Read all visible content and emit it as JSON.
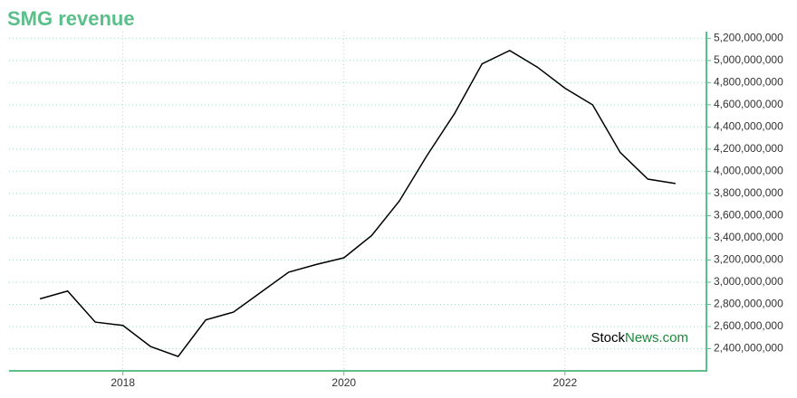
{
  "chart_data": {
    "type": "line",
    "title": "SMG revenue",
    "x": [
      2017.25,
      2017.5,
      2017.75,
      2018.0,
      2018.25,
      2018.5,
      2018.75,
      2019.0,
      2019.25,
      2019.5,
      2019.75,
      2020.0,
      2020.25,
      2020.5,
      2020.75,
      2021.0,
      2021.25,
      2021.5,
      2021.75,
      2022.0,
      2022.25,
      2022.5,
      2022.75,
      2023.0
    ],
    "series": [
      {
        "name": "SMG revenue",
        "color": "#000000",
        "values": [
          2850000000,
          2920000000,
          2640000000,
          2610000000,
          2420000000,
          2330000000,
          2660000000,
          2730000000,
          2910000000,
          3090000000,
          3160000000,
          3220000000,
          3420000000,
          3730000000,
          4140000000,
          4520000000,
          4970000000,
          5090000000,
          4940000000,
          4750000000,
          4600000000,
          4170000000,
          3930000000,
          3890000000
        ]
      }
    ],
    "xlim": [
      2016.97,
      2023.28
    ],
    "xticks": [
      2018,
      2020,
      2022
    ],
    "ylim": [
      2200000000,
      5260000000
    ],
    "yticks": [
      {
        "value": 2400000000,
        "label": "2,400,000,000"
      },
      {
        "value": 2600000000,
        "label": "2,600,000,000"
      },
      {
        "value": 2800000000,
        "label": "2,800,000,000"
      },
      {
        "value": 3000000000,
        "label": "3,000,000,000"
      },
      {
        "value": 3200000000,
        "label": "3,200,000,000"
      },
      {
        "value": 3400000000,
        "label": "3,400,000,000"
      },
      {
        "value": 3600000000,
        "label": "3,600,000,000"
      },
      {
        "value": 3800000000,
        "label": "3,800,000,000"
      },
      {
        "value": 4000000000,
        "label": "4,000,000,000"
      },
      {
        "value": 4200000000,
        "label": "4,200,000,000"
      },
      {
        "value": 4400000000,
        "label": "4,400,000,000"
      },
      {
        "value": 4600000000,
        "label": "4,600,000,000"
      },
      {
        "value": 4800000000,
        "label": "4,800,000,000"
      },
      {
        "value": 5000000000,
        "label": "5,000,000,000"
      },
      {
        "value": 5200000000,
        "label": "5,200,000,000"
      }
    ],
    "grid": true,
    "axis_color": "#5bbf8a",
    "watermark": {
      "prefix": "Stock",
      "suffix": "News.com"
    }
  }
}
